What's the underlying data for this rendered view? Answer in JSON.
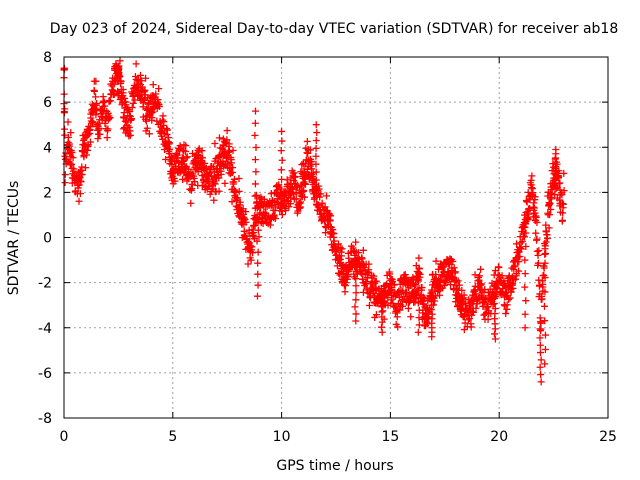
{
  "chart_data": {
    "type": "scatter",
    "title": "Day 023 of 2024, Sidereal Day-to-day VTEC variation (SDTVAR) for receiver ab18",
    "xlabel": "GPS time / hours",
    "ylabel": "SDTVAR / TECUs",
    "xlim": [
      0,
      25
    ],
    "ylim": [
      -8,
      8
    ],
    "x_ticks": [
      0,
      5,
      10,
      15,
      20,
      25
    ],
    "y_ticks": [
      -8,
      -6,
      -4,
      -2,
      0,
      2,
      4,
      6,
      8
    ],
    "x_tick_labels": [
      "0",
      "5",
      "10",
      "15",
      "20",
      "25"
    ],
    "y_tick_labels": [
      "-8",
      "-6",
      "-4",
      "-2",
      "0",
      "2",
      "4",
      "6",
      "8"
    ],
    "grid": true,
    "marker": "plus",
    "color": "#ff0000",
    "series": [
      {
        "name": "SDTVAR",
        "trend": [
          [
            0.0,
            7.4
          ],
          [
            0.05,
            2.8
          ],
          [
            0.15,
            4.0
          ],
          [
            0.3,
            3.6
          ],
          [
            0.5,
            2.5
          ],
          [
            0.7,
            2.0
          ],
          [
            0.9,
            4.0
          ],
          [
            1.2,
            4.5
          ],
          [
            1.4,
            6.2
          ],
          [
            1.6,
            5.0
          ],
          [
            1.8,
            5.6
          ],
          [
            2.0,
            4.9
          ],
          [
            2.2,
            6.6
          ],
          [
            2.4,
            7.2
          ],
          [
            2.6,
            6.5
          ],
          [
            2.8,
            5.6
          ],
          [
            3.0,
            5.0
          ],
          [
            3.2,
            6.6
          ],
          [
            3.5,
            6.8
          ],
          [
            3.8,
            5.6
          ],
          [
            4.2,
            5.9
          ],
          [
            4.5,
            5.0
          ],
          [
            4.8,
            4.0
          ],
          [
            5.0,
            2.8
          ],
          [
            5.2,
            3.3
          ],
          [
            5.5,
            3.6
          ],
          [
            5.8,
            2.5
          ],
          [
            6.2,
            3.6
          ],
          [
            6.6,
            2.3
          ],
          [
            7.0,
            3.0
          ],
          [
            7.5,
            3.8
          ],
          [
            7.8,
            2.3
          ],
          [
            8.0,
            1.6
          ],
          [
            8.3,
            0.8
          ],
          [
            8.6,
            -0.6
          ],
          [
            8.9,
            1.3
          ],
          [
            9.2,
            1.2
          ],
          [
            9.5,
            0.9
          ],
          [
            9.8,
            1.9
          ],
          [
            10.1,
            1.3
          ],
          [
            10.5,
            2.5
          ],
          [
            10.8,
            1.6
          ],
          [
            11.2,
            3.5
          ],
          [
            11.5,
            2.2
          ],
          [
            11.8,
            1.4
          ],
          [
            12.2,
            0.5
          ],
          [
            12.6,
            -1.0
          ],
          [
            12.9,
            -1.8
          ],
          [
            13.2,
            -1.0
          ],
          [
            13.6,
            -1.2
          ],
          [
            14.0,
            -2.0
          ],
          [
            14.4,
            -2.5
          ],
          [
            14.7,
            -2.4
          ],
          [
            15.0,
            -2.0
          ],
          [
            15.3,
            -3.0
          ],
          [
            15.6,
            -2.2
          ],
          [
            16.0,
            -2.4
          ],
          [
            16.3,
            -1.6
          ],
          [
            16.6,
            -3.6
          ],
          [
            16.9,
            -2.8
          ],
          [
            17.2,
            -1.8
          ],
          [
            17.5,
            -1.6
          ],
          [
            17.8,
            -1.4
          ],
          [
            18.2,
            -2.8
          ],
          [
            18.5,
            -3.4
          ],
          [
            18.8,
            -3.0
          ],
          [
            19.1,
            -2.2
          ],
          [
            19.4,
            -3.0
          ],
          [
            19.7,
            -2.7
          ],
          [
            20.0,
            -1.8
          ],
          [
            20.3,
            -2.8
          ],
          [
            20.6,
            -1.8
          ],
          [
            20.9,
            -0.7
          ],
          [
            21.2,
            0.8
          ],
          [
            21.5,
            2.3
          ],
          [
            21.7,
            0.5
          ],
          [
            21.9,
            -3.8
          ],
          [
            22.1,
            -0.5
          ],
          [
            22.3,
            1.2
          ],
          [
            22.5,
            3.0
          ],
          [
            22.7,
            2.4
          ],
          [
            22.9,
            1.2
          ],
          [
            23.0,
            2.8
          ]
        ],
        "spikes": [
          [
            0.0,
            7.5
          ],
          [
            2.5,
            7.6
          ],
          [
            8.8,
            5.6
          ],
          [
            8.9,
            -2.6
          ],
          [
            10.0,
            4.7
          ],
          [
            11.6,
            5.0
          ],
          [
            13.4,
            -3.7
          ],
          [
            14.6,
            -4.2
          ],
          [
            16.3,
            -4.2
          ],
          [
            16.9,
            -4.4
          ],
          [
            19.8,
            -4.5
          ],
          [
            21.2,
            -4.0
          ],
          [
            21.9,
            -6.4
          ],
          [
            22.1,
            -5.6
          ],
          [
            22.6,
            3.9
          ]
        ]
      }
    ]
  }
}
